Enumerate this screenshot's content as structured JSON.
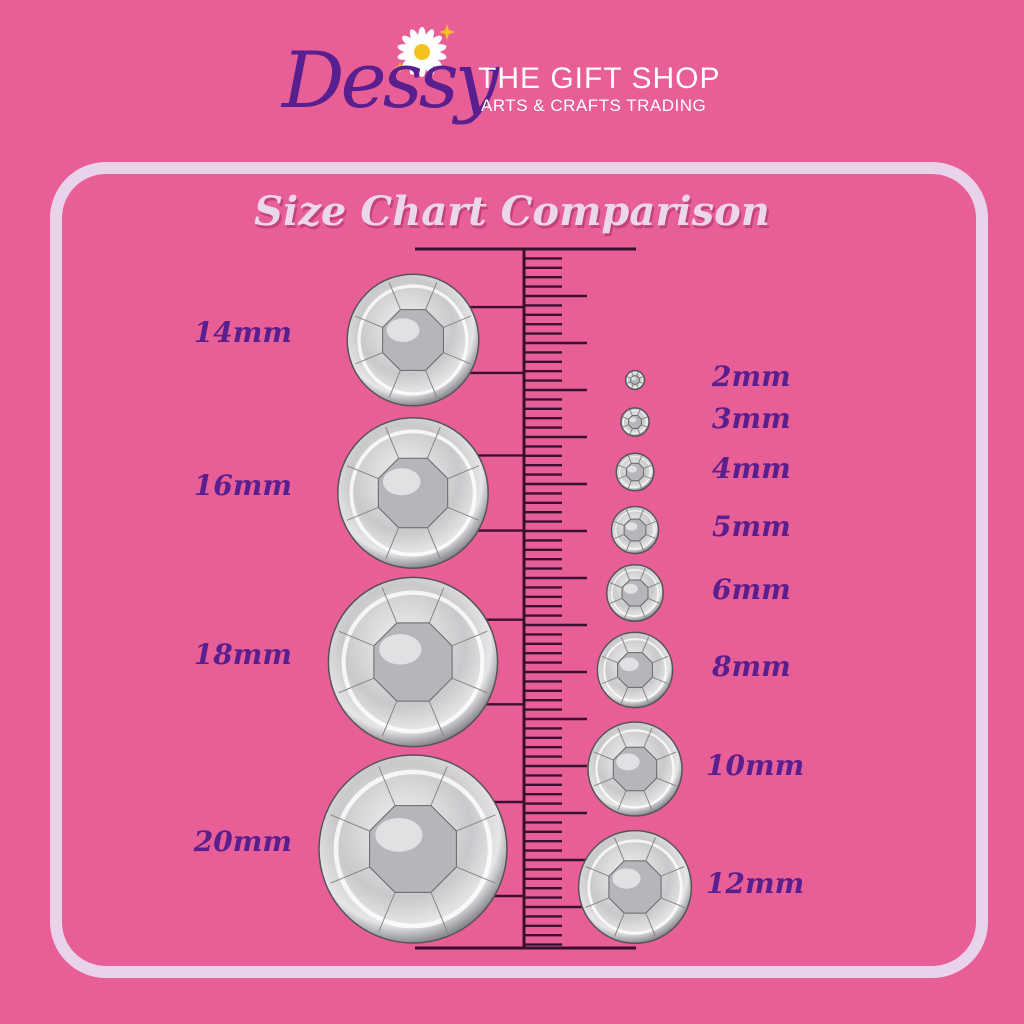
{
  "brand": {
    "logo_text": "Dessy",
    "shop_name": "THE GIFT SHOP",
    "tagline": "ARTS & CRAFTS TRADING"
  },
  "title": "Size Chart Comparison",
  "colors": {
    "background": "#e85e96",
    "label": "#5a1f8e",
    "panel_border": "#e9d3ea",
    "ruler": "#3a1030"
  },
  "left_sizes": [
    {
      "label": "14mm",
      "mm": 14
    },
    {
      "label": "16mm",
      "mm": 16
    },
    {
      "label": "18mm",
      "mm": 18
    },
    {
      "label": "20mm",
      "mm": 20
    }
  ],
  "right_sizes": [
    {
      "label": "2mm",
      "mm": 2
    },
    {
      "label": "3mm",
      "mm": 3
    },
    {
      "label": "4mm",
      "mm": 4
    },
    {
      "label": "5mm",
      "mm": 5
    },
    {
      "label": "6mm",
      "mm": 6
    },
    {
      "label": "8mm",
      "mm": 8
    },
    {
      "label": "10mm",
      "mm": 10
    },
    {
      "label": "12mm",
      "mm": 12
    }
  ]
}
